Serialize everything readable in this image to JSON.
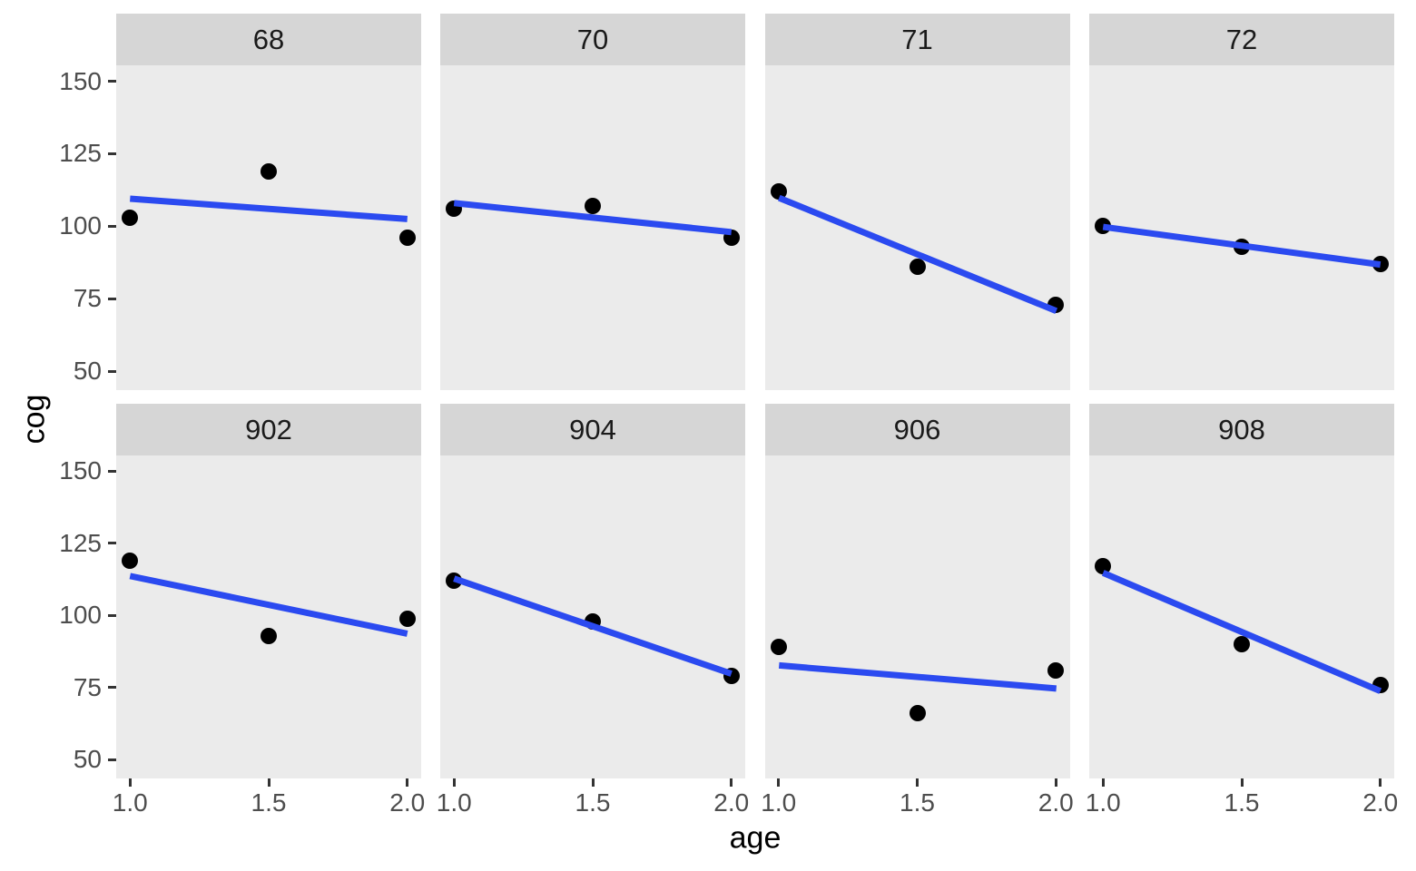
{
  "figure": {
    "background": "#FFFFFF",
    "colors": {
      "panel_bg": "#EBEBEB",
      "strip_bg": "#D6D6D6",
      "strip_text": "#1A1A1A",
      "point": "#000000",
      "trend_line": "#2B4AF0",
      "tick_text": "#4D4D4D",
      "tick_mark": "#333333",
      "axis_title": "#000000"
    }
  },
  "chart_data": {
    "type": "scatter",
    "xlabel": "age",
    "ylabel": "cog",
    "x": [
      1.0,
      1.5,
      2.0
    ],
    "x_ticks": [
      "1.0",
      "1.5",
      "2.0"
    ],
    "x_tick_values": [
      1.0,
      1.5,
      2.0
    ],
    "y_ticks": [
      "50",
      "75",
      "100",
      "125",
      "150"
    ],
    "y_tick_values": [
      50,
      75,
      100,
      125,
      150
    ],
    "xlim": [
      0.95,
      2.05
    ],
    "ylim": [
      43.5,
      155.5
    ],
    "grid": false,
    "legend": "none",
    "facets": [
      {
        "label": "68",
        "row": 0,
        "col": 0,
        "points": [
          103,
          119,
          96
        ],
        "fit": [
          109.5,
          102.5
        ]
      },
      {
        "label": "70",
        "row": 0,
        "col": 1,
        "points": [
          106,
          107,
          96
        ],
        "fit": [
          108.0,
          98.0
        ]
      },
      {
        "label": "71",
        "row": 0,
        "col": 2,
        "points": [
          112,
          86,
          73
        ],
        "fit": [
          109.8,
          70.8
        ]
      },
      {
        "label": "72",
        "row": 0,
        "col": 3,
        "points": [
          100,
          93,
          87
        ],
        "fit": [
          99.8,
          86.8
        ]
      },
      {
        "label": "902",
        "row": 1,
        "col": 0,
        "points": [
          119,
          93,
          99
        ],
        "fit": [
          113.7,
          93.7
        ]
      },
      {
        "label": "904",
        "row": 1,
        "col": 1,
        "points": [
          112,
          98,
          79
        ],
        "fit": [
          112.8,
          79.8
        ]
      },
      {
        "label": "906",
        "row": 1,
        "col": 2,
        "points": [
          89,
          66,
          81
        ],
        "fit": [
          82.7,
          74.7
        ]
      },
      {
        "label": "908",
        "row": 1,
        "col": 3,
        "points": [
          117,
          90,
          76
        ],
        "fit": [
          114.8,
          73.8
        ]
      }
    ]
  }
}
